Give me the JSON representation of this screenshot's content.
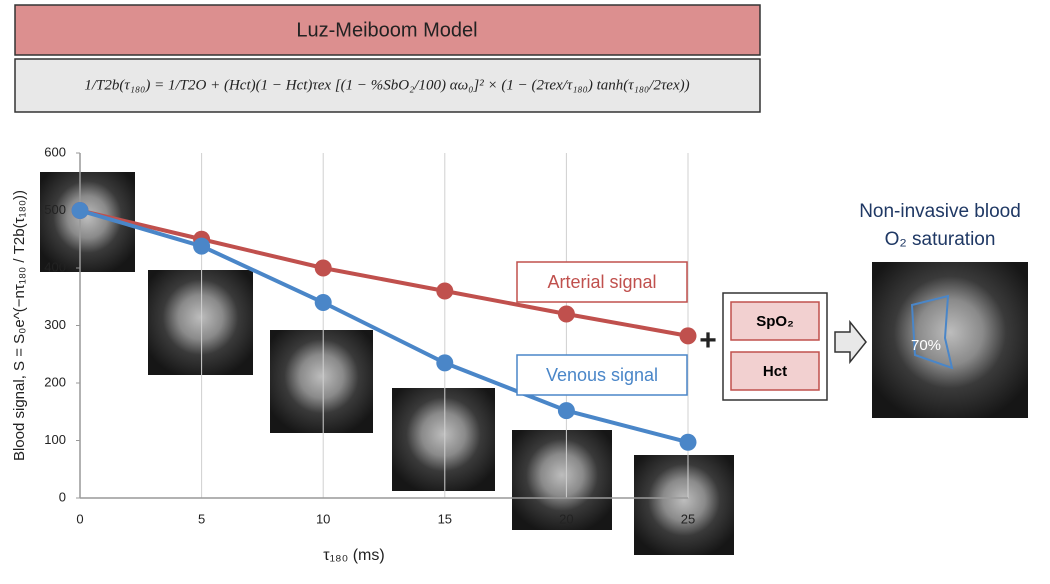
{
  "chart_data": {
    "type": "line",
    "title": "Luz-Meiboom Model",
    "equation": "1/T2b(τ₁₈₀) = 1/T2O + (Hct)(1 − Hct)τex [(1 − %SbO₂/100) αω₀]² × (1 − (2τex/τ₁₈₀) tanh(τ₁₈₀/2τex))",
    "x_label": "τ₁₈₀ (ms)",
    "y_label": "Blood signal, S = S₀e^(−nτ₁₈₀ / T2b(τ₁₈₀))",
    "x": [
      0,
      5,
      10,
      15,
      20,
      25
    ],
    "series": [
      {
        "name": "Arterial signal",
        "color": "#c0504d",
        "values": [
          500,
          450,
          400,
          360,
          320,
          282
        ]
      },
      {
        "name": "Venous signal",
        "color": "#4a86c8",
        "values": [
          500,
          438,
          340,
          235,
          152,
          97
        ]
      }
    ],
    "xlim": [
      0,
      25
    ],
    "xticks": [
      0,
      5,
      10,
      15,
      20,
      25
    ],
    "ylim": [
      0,
      600
    ],
    "yticks": [
      0,
      100,
      200,
      300,
      400,
      500,
      600
    ],
    "grid": true,
    "inputs": [
      "SpO₂",
      "Hct"
    ],
    "result_title": [
      "Non-invasive blood",
      "O₂ saturation"
    ],
    "result_value": "70%"
  }
}
